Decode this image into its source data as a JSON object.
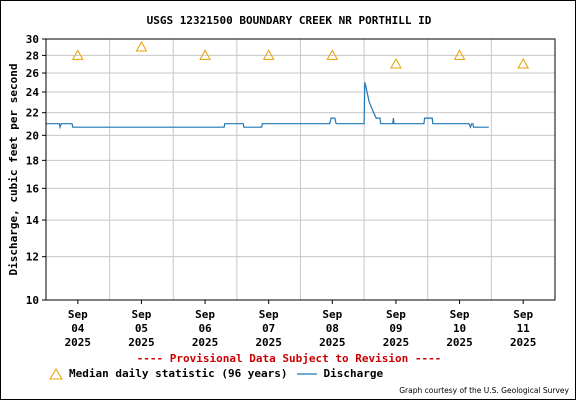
{
  "chart_data": {
    "type": "line",
    "title": "USGS 12321500 BOUNDARY CREEK NR PORTHILL ID",
    "ylabel": "Discharge, cubic feet per second",
    "yscale": "log",
    "ylim": [
      10,
      30
    ],
    "yticks": [
      10,
      12,
      14,
      16,
      18,
      20,
      22,
      24,
      26,
      28,
      30
    ],
    "xlim": [
      3.5,
      11.5
    ],
    "xticks": [
      {
        "x": 4,
        "labels": [
          "Sep",
          "04",
          "2025"
        ]
      },
      {
        "x": 5,
        "labels": [
          "Sep",
          "05",
          "2025"
        ]
      },
      {
        "x": 6,
        "labels": [
          "Sep",
          "06",
          "2025"
        ]
      },
      {
        "x": 7,
        "labels": [
          "Sep",
          "07",
          "2025"
        ]
      },
      {
        "x": 8,
        "labels": [
          "Sep",
          "08",
          "2025"
        ]
      },
      {
        "x": 9,
        "labels": [
          "Sep",
          "09",
          "2025"
        ]
      },
      {
        "x": 10,
        "labels": [
          "Sep",
          "10",
          "2025"
        ]
      },
      {
        "x": 11,
        "labels": [
          "Sep",
          "11",
          "2025"
        ]
      }
    ],
    "grid": true,
    "series": [
      {
        "name": "Median daily statistic (96 years)",
        "kind": "markers",
        "marker": "triangle",
        "color": "#e8a000",
        "x": [
          4,
          5,
          6,
          7,
          8,
          9,
          10,
          11
        ],
        "y": [
          28,
          29,
          28,
          28,
          28,
          27,
          28,
          27
        ]
      },
      {
        "name": "Discharge",
        "kind": "line",
        "color": "#1f77b4",
        "x": [
          3.5,
          3.71,
          3.72,
          3.74,
          3.75,
          3.91,
          3.92,
          4.99,
          5.0,
          6.3,
          6.31,
          6.35,
          6.36,
          6.6,
          6.61,
          6.88,
          6.89,
          6.9,
          6.91,
          7.95,
          7.96,
          7.98,
          8.04,
          8.06,
          8.07,
          8.5,
          8.51,
          8.53,
          8.58,
          8.65,
          8.69,
          8.72,
          8.75,
          8.76,
          8.95,
          8.96,
          8.97,
          9.0,
          9.01,
          9.44,
          9.45,
          9.47,
          9.57,
          9.58,
          10.15,
          10.17,
          10.19,
          10.21,
          10.22,
          10.24,
          10.25,
          10.46
        ],
        "y": [
          21.0,
          21.0,
          20.7,
          21.0,
          21.0,
          21.0,
          20.7,
          20.7,
          20.7,
          20.7,
          21.0,
          21.0,
          21.0,
          21.0,
          20.7,
          20.7,
          20.7,
          21.0,
          21.0,
          21.0,
          21.0,
          21.5,
          21.5,
          21.0,
          21.0,
          21.0,
          25.0,
          24.5,
          23.0,
          22.0,
          21.5,
          21.5,
          21.5,
          21.0,
          21.0,
          21.5,
          21.0,
          21.0,
          21.0,
          21.0,
          21.5,
          21.5,
          21.5,
          21.0,
          21.0,
          20.7,
          21.0,
          21.0,
          20.7,
          20.7,
          20.7,
          20.7
        ]
      }
    ]
  },
  "notice": "---- Provisional Data Subject to Revision ----",
  "credit": "Graph courtesy of the U.S. Geological Survey",
  "colors": {
    "notice": "#cc0000",
    "grid": "#c8c8c8",
    "median_marker": "#e8a000",
    "discharge_line": "#1f77b4"
  }
}
